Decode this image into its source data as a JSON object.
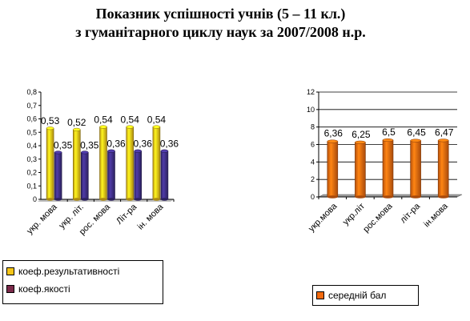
{
  "title": {
    "line1": "Показник успішності учнів (5 – 11 кл.)",
    "line2": "з гуманітарного циклу наук за 2007/2008 н.р."
  },
  "colors": {
    "yellow": "#f5c518",
    "purple": "#3f2f86",
    "orange": "#f26a0f"
  },
  "chart_data": [
    {
      "type": "bar",
      "categories": [
        "укр. мова",
        "укр. літ.",
        "рос. мова",
        "Літ-ра",
        "ін. мова"
      ],
      "series": [
        {
          "name": "коеф.результативності",
          "values": [
            0.53,
            0.52,
            0.54,
            0.54,
            0.54
          ],
          "labels": [
            "0,53",
            "0,52",
            "0,54",
            "0,54",
            "0,54"
          ]
        },
        {
          "name": "коеф.якості",
          "values": [
            0.35,
            0.35,
            0.36,
            0.36,
            0.36
          ],
          "labels": [
            "0,35",
            "0,35",
            "0,36",
            "0,36",
            "0,36"
          ]
        }
      ],
      "ylim": [
        0,
        0.8
      ],
      "yticks": [
        "0",
        "0,1",
        "0,2",
        "0,3",
        "0,4",
        "0,5",
        "0,6",
        "0,7",
        "0,8"
      ],
      "grid": false,
      "legend": "bottom"
    },
    {
      "type": "bar",
      "categories": [
        "укр.мова",
        "укр.літ",
        "рос.мова",
        "літ-ра",
        "ін.мова"
      ],
      "series": [
        {
          "name": "середній бал",
          "values": [
            6.36,
            6.25,
            6.5,
            6.45,
            6.47
          ],
          "labels": [
            "6,36",
            "6,25",
            "6,5",
            "6,45",
            "6,47"
          ]
        }
      ],
      "ylim": [
        0,
        12
      ],
      "yticks": [
        "0",
        "2",
        "4",
        "6",
        "8",
        "10",
        "12"
      ],
      "grid": true,
      "legend": "bottom"
    }
  ]
}
